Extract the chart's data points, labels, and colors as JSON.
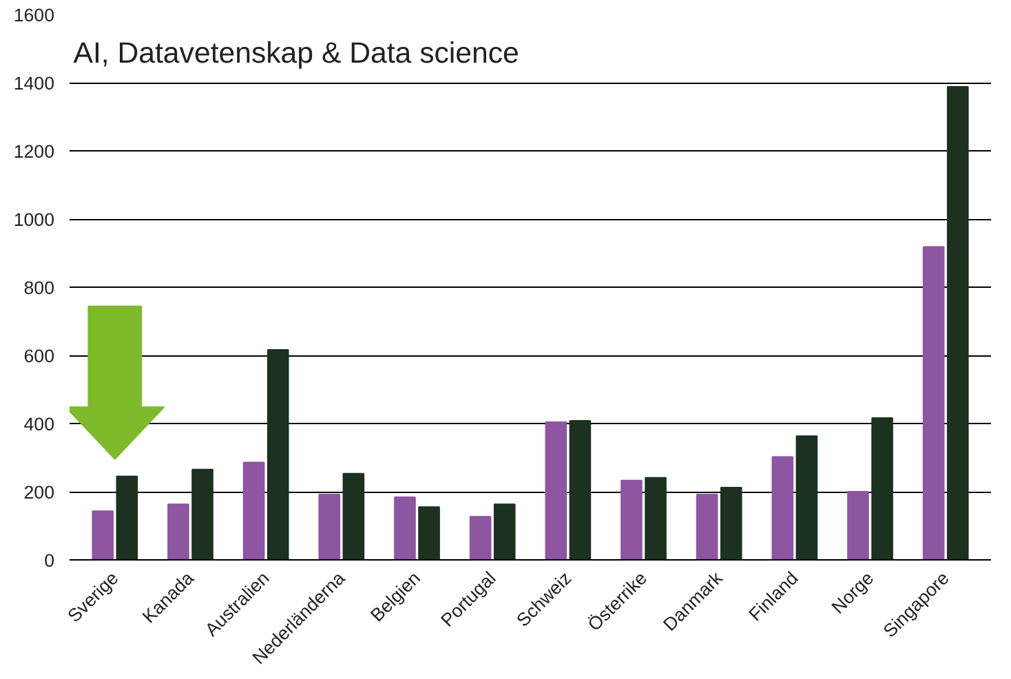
{
  "chart_data": {
    "type": "bar",
    "title": "AI, Datavetenskap & Data science",
    "categories": [
      "Sverige",
      "Kanada",
      "Australien",
      "Nederländerna",
      "Belgien",
      "Portugal",
      "Schweiz",
      "Österrike",
      "Danmark",
      "Finland",
      "Norge",
      "Singapore"
    ],
    "series": [
      {
        "color": "#8e55a0",
        "values": [
          143,
          163,
          286,
          192,
          184,
          127,
          404,
          233,
          192,
          302,
          200,
          918
        ]
      },
      {
        "color": "#1c3120",
        "values": [
          245,
          265,
          616,
          253,
          155,
          163,
          408,
          241,
          212,
          363,
          416,
          1388
        ]
      }
    ],
    "ylim": [
      0,
      1600
    ],
    "yticks": [
      0,
      200,
      400,
      600,
      800,
      1000,
      1200,
      1400,
      1600
    ],
    "grid": "y"
  }
}
